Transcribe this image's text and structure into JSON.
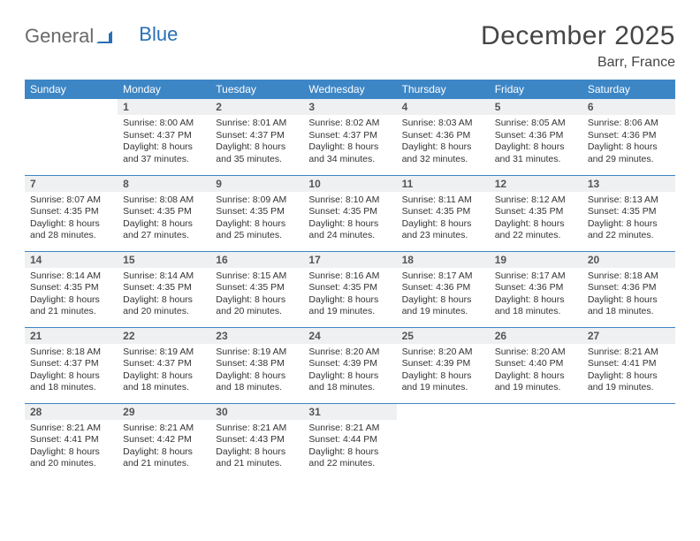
{
  "logo": {
    "part1": "General",
    "part2": "Blue"
  },
  "title": "December 2025",
  "location": "Barr, France",
  "colors": {
    "header_bg": "#3d86c6",
    "header_text": "#ffffff",
    "daynum_bg": "#eef0f1",
    "daynum_text": "#555555",
    "body_text": "#333333",
    "rule": "#3d86c6",
    "logo_gray": "#6a6a6a",
    "logo_blue": "#2a6fb5",
    "page_bg": "#ffffff"
  },
  "columns": [
    "Sunday",
    "Monday",
    "Tuesday",
    "Wednesday",
    "Thursday",
    "Friday",
    "Saturday"
  ],
  "weeks": [
    [
      {
        "n": "",
        "sunrise": "",
        "sunset": "",
        "dayl1": "",
        "dayl2": ""
      },
      {
        "n": "1",
        "sunrise": "Sunrise: 8:00 AM",
        "sunset": "Sunset: 4:37 PM",
        "dayl1": "Daylight: 8 hours",
        "dayl2": "and 37 minutes."
      },
      {
        "n": "2",
        "sunrise": "Sunrise: 8:01 AM",
        "sunset": "Sunset: 4:37 PM",
        "dayl1": "Daylight: 8 hours",
        "dayl2": "and 35 minutes."
      },
      {
        "n": "3",
        "sunrise": "Sunrise: 8:02 AM",
        "sunset": "Sunset: 4:37 PM",
        "dayl1": "Daylight: 8 hours",
        "dayl2": "and 34 minutes."
      },
      {
        "n": "4",
        "sunrise": "Sunrise: 8:03 AM",
        "sunset": "Sunset: 4:36 PM",
        "dayl1": "Daylight: 8 hours",
        "dayl2": "and 32 minutes."
      },
      {
        "n": "5",
        "sunrise": "Sunrise: 8:05 AM",
        "sunset": "Sunset: 4:36 PM",
        "dayl1": "Daylight: 8 hours",
        "dayl2": "and 31 minutes."
      },
      {
        "n": "6",
        "sunrise": "Sunrise: 8:06 AM",
        "sunset": "Sunset: 4:36 PM",
        "dayl1": "Daylight: 8 hours",
        "dayl2": "and 29 minutes."
      }
    ],
    [
      {
        "n": "7",
        "sunrise": "Sunrise: 8:07 AM",
        "sunset": "Sunset: 4:35 PM",
        "dayl1": "Daylight: 8 hours",
        "dayl2": "and 28 minutes."
      },
      {
        "n": "8",
        "sunrise": "Sunrise: 8:08 AM",
        "sunset": "Sunset: 4:35 PM",
        "dayl1": "Daylight: 8 hours",
        "dayl2": "and 27 minutes."
      },
      {
        "n": "9",
        "sunrise": "Sunrise: 8:09 AM",
        "sunset": "Sunset: 4:35 PM",
        "dayl1": "Daylight: 8 hours",
        "dayl2": "and 25 minutes."
      },
      {
        "n": "10",
        "sunrise": "Sunrise: 8:10 AM",
        "sunset": "Sunset: 4:35 PM",
        "dayl1": "Daylight: 8 hours",
        "dayl2": "and 24 minutes."
      },
      {
        "n": "11",
        "sunrise": "Sunrise: 8:11 AM",
        "sunset": "Sunset: 4:35 PM",
        "dayl1": "Daylight: 8 hours",
        "dayl2": "and 23 minutes."
      },
      {
        "n": "12",
        "sunrise": "Sunrise: 8:12 AM",
        "sunset": "Sunset: 4:35 PM",
        "dayl1": "Daylight: 8 hours",
        "dayl2": "and 22 minutes."
      },
      {
        "n": "13",
        "sunrise": "Sunrise: 8:13 AM",
        "sunset": "Sunset: 4:35 PM",
        "dayl1": "Daylight: 8 hours",
        "dayl2": "and 22 minutes."
      }
    ],
    [
      {
        "n": "14",
        "sunrise": "Sunrise: 8:14 AM",
        "sunset": "Sunset: 4:35 PM",
        "dayl1": "Daylight: 8 hours",
        "dayl2": "and 21 minutes."
      },
      {
        "n": "15",
        "sunrise": "Sunrise: 8:14 AM",
        "sunset": "Sunset: 4:35 PM",
        "dayl1": "Daylight: 8 hours",
        "dayl2": "and 20 minutes."
      },
      {
        "n": "16",
        "sunrise": "Sunrise: 8:15 AM",
        "sunset": "Sunset: 4:35 PM",
        "dayl1": "Daylight: 8 hours",
        "dayl2": "and 20 minutes."
      },
      {
        "n": "17",
        "sunrise": "Sunrise: 8:16 AM",
        "sunset": "Sunset: 4:35 PM",
        "dayl1": "Daylight: 8 hours",
        "dayl2": "and 19 minutes."
      },
      {
        "n": "18",
        "sunrise": "Sunrise: 8:17 AM",
        "sunset": "Sunset: 4:36 PM",
        "dayl1": "Daylight: 8 hours",
        "dayl2": "and 19 minutes."
      },
      {
        "n": "19",
        "sunrise": "Sunrise: 8:17 AM",
        "sunset": "Sunset: 4:36 PM",
        "dayl1": "Daylight: 8 hours",
        "dayl2": "and 18 minutes."
      },
      {
        "n": "20",
        "sunrise": "Sunrise: 8:18 AM",
        "sunset": "Sunset: 4:36 PM",
        "dayl1": "Daylight: 8 hours",
        "dayl2": "and 18 minutes."
      }
    ],
    [
      {
        "n": "21",
        "sunrise": "Sunrise: 8:18 AM",
        "sunset": "Sunset: 4:37 PM",
        "dayl1": "Daylight: 8 hours",
        "dayl2": "and 18 minutes."
      },
      {
        "n": "22",
        "sunrise": "Sunrise: 8:19 AM",
        "sunset": "Sunset: 4:37 PM",
        "dayl1": "Daylight: 8 hours",
        "dayl2": "and 18 minutes."
      },
      {
        "n": "23",
        "sunrise": "Sunrise: 8:19 AM",
        "sunset": "Sunset: 4:38 PM",
        "dayl1": "Daylight: 8 hours",
        "dayl2": "and 18 minutes."
      },
      {
        "n": "24",
        "sunrise": "Sunrise: 8:20 AM",
        "sunset": "Sunset: 4:39 PM",
        "dayl1": "Daylight: 8 hours",
        "dayl2": "and 18 minutes."
      },
      {
        "n": "25",
        "sunrise": "Sunrise: 8:20 AM",
        "sunset": "Sunset: 4:39 PM",
        "dayl1": "Daylight: 8 hours",
        "dayl2": "and 19 minutes."
      },
      {
        "n": "26",
        "sunrise": "Sunrise: 8:20 AM",
        "sunset": "Sunset: 4:40 PM",
        "dayl1": "Daylight: 8 hours",
        "dayl2": "and 19 minutes."
      },
      {
        "n": "27",
        "sunrise": "Sunrise: 8:21 AM",
        "sunset": "Sunset: 4:41 PM",
        "dayl1": "Daylight: 8 hours",
        "dayl2": "and 19 minutes."
      }
    ],
    [
      {
        "n": "28",
        "sunrise": "Sunrise: 8:21 AM",
        "sunset": "Sunset: 4:41 PM",
        "dayl1": "Daylight: 8 hours",
        "dayl2": "and 20 minutes."
      },
      {
        "n": "29",
        "sunrise": "Sunrise: 8:21 AM",
        "sunset": "Sunset: 4:42 PM",
        "dayl1": "Daylight: 8 hours",
        "dayl2": "and 21 minutes."
      },
      {
        "n": "30",
        "sunrise": "Sunrise: 8:21 AM",
        "sunset": "Sunset: 4:43 PM",
        "dayl1": "Daylight: 8 hours",
        "dayl2": "and 21 minutes."
      },
      {
        "n": "31",
        "sunrise": "Sunrise: 8:21 AM",
        "sunset": "Sunset: 4:44 PM",
        "dayl1": "Daylight: 8 hours",
        "dayl2": "and 22 minutes."
      },
      {
        "n": "",
        "sunrise": "",
        "sunset": "",
        "dayl1": "",
        "dayl2": ""
      },
      {
        "n": "",
        "sunrise": "",
        "sunset": "",
        "dayl1": "",
        "dayl2": ""
      },
      {
        "n": "",
        "sunrise": "",
        "sunset": "",
        "dayl1": "",
        "dayl2": ""
      }
    ]
  ]
}
